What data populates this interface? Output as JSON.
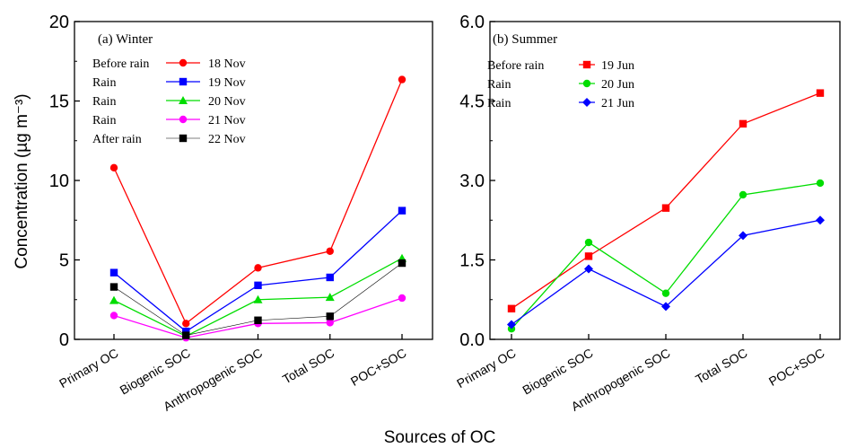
{
  "figure": {
    "ylabel": "Concentration (µg m⁻³)",
    "xlabel": "Sources of OC"
  },
  "chart_data": [
    {
      "type": "line",
      "title": "(a) Winter",
      "categories": [
        "Primary OC",
        "Biogenic SOC",
        "Anthropogenic SOC",
        "Total SOC",
        "POC+SOC"
      ],
      "ylim": [
        0,
        20
      ],
      "yticks": [
        "0",
        "5",
        "10",
        "15",
        "20"
      ],
      "ytick_values": [
        0,
        5,
        10,
        15,
        20
      ],
      "legend_position": "top-left",
      "series": [
        {
          "condition": "Before rain",
          "name": "18 Nov",
          "color": "#ff0000",
          "marker": "circle",
          "values": [
            10.8,
            1.0,
            4.5,
            5.55,
            16.35
          ]
        },
        {
          "condition": "Rain",
          "name": "19 Nov",
          "color": "#0000ff",
          "marker": "square",
          "values": [
            4.2,
            0.5,
            3.4,
            3.9,
            8.1
          ]
        },
        {
          "condition": "Rain",
          "name": "20 Nov",
          "color": "#00dd00",
          "marker": "triangle",
          "values": [
            2.45,
            0.2,
            2.5,
            2.65,
            5.1
          ]
        },
        {
          "condition": "Rain",
          "name": "21 Nov",
          "color": "#ff00ff",
          "marker": "circle",
          "values": [
            1.5,
            0.1,
            1.0,
            1.05,
            2.6
          ]
        },
        {
          "condition": "After rain",
          "name": "22 Nov",
          "color": "#000000",
          "marker": "square",
          "values": [
            3.3,
            0.25,
            1.2,
            1.45,
            4.8
          ]
        }
      ]
    },
    {
      "type": "line",
      "title": "(b) Summer",
      "categories": [
        "Primary OC",
        "Biogenic SOC",
        "Anthropogenic SOC",
        "Total SOC",
        "POC+SOC"
      ],
      "ylim": [
        0,
        6
      ],
      "yticks": [
        "0.0",
        "1.5",
        "3.0",
        "4.5",
        "6.0"
      ],
      "ytick_values": [
        0,
        1.5,
        3.0,
        4.5,
        6.0
      ],
      "legend_position": "top-left",
      "series": [
        {
          "condition": "Before rain",
          "name": "19 Jun",
          "color": "#ff0000",
          "marker": "square",
          "values": [
            0.58,
            1.57,
            2.48,
            4.07,
            4.65
          ]
        },
        {
          "condition": "Rain",
          "name": "20 Jun",
          "color": "#00dd00",
          "marker": "circle",
          "values": [
            0.2,
            1.83,
            0.87,
            2.73,
            2.95
          ]
        },
        {
          "condition": "Rain",
          "name": "21 Jun",
          "color": "#0000ff",
          "marker": "diamond",
          "values": [
            0.28,
            1.33,
            0.62,
            1.96,
            2.25
          ]
        }
      ]
    }
  ]
}
